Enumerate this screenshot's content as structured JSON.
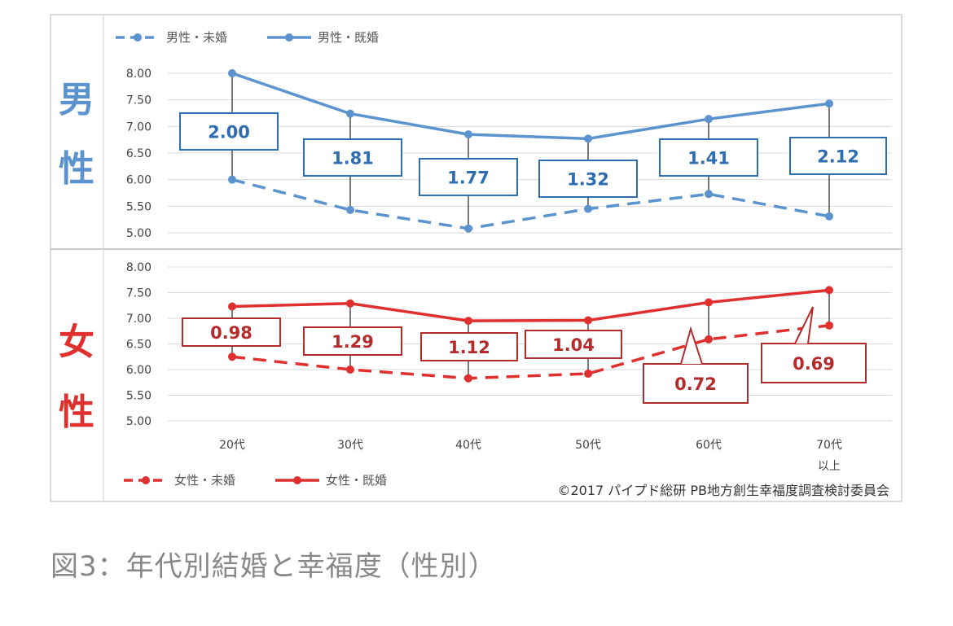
{
  "caption": "図3：年代別結婚と幸福度（性別）",
  "copyright": "©2017 パイプド総研 PB地方創生幸福度調査検討委員会",
  "colors": {
    "male": "#5b93cf",
    "female": "#e0302e",
    "male_box": "#2e6db0",
    "female_box": "#b52b2b"
  },
  "chart_data": [
    {
      "type": "line",
      "panel_label": "男性",
      "categories": [
        "20代",
        "30代",
        "40代",
        "50代",
        "60代",
        "70代\n以上"
      ],
      "ylim": [
        5.0,
        8.0
      ],
      "yticks": [
        "8.00",
        "7.50",
        "7.00",
        "6.50",
        "6.00",
        "5.50",
        "5.00"
      ],
      "legend_position": "top-left",
      "series": [
        {
          "name": "男性・未婚",
          "style": "dashed",
          "values": [
            6.0,
            5.43,
            5.08,
            5.45,
            5.73,
            5.31
          ]
        },
        {
          "name": "男性・既婚",
          "style": "solid",
          "values": [
            8.0,
            7.24,
            6.85,
            6.77,
            7.14,
            7.43
          ]
        }
      ],
      "differences": [
        "2.00",
        "1.81",
        "1.77",
        "1.32",
        "1.41",
        "2.12"
      ]
    },
    {
      "type": "line",
      "panel_label": "女性",
      "categories": [
        "20代",
        "30代",
        "40代",
        "50代",
        "60代",
        "70代\n以上"
      ],
      "ylim": [
        5.0,
        8.0
      ],
      "yticks": [
        "8.00",
        "7.50",
        "7.00",
        "6.50",
        "6.00",
        "5.50",
        "5.00"
      ],
      "legend_position": "bottom-left",
      "series": [
        {
          "name": "女性・未婚",
          "style": "dashed",
          "values": [
            6.25,
            6.0,
            5.83,
            5.92,
            6.59,
            6.86
          ]
        },
        {
          "name": "女性・既婚",
          "style": "solid",
          "values": [
            7.23,
            7.29,
            6.95,
            6.96,
            7.31,
            7.55
          ]
        }
      ],
      "differences": [
        "0.98",
        "1.29",
        "1.12",
        "1.04",
        "0.72",
        "0.69"
      ]
    }
  ]
}
